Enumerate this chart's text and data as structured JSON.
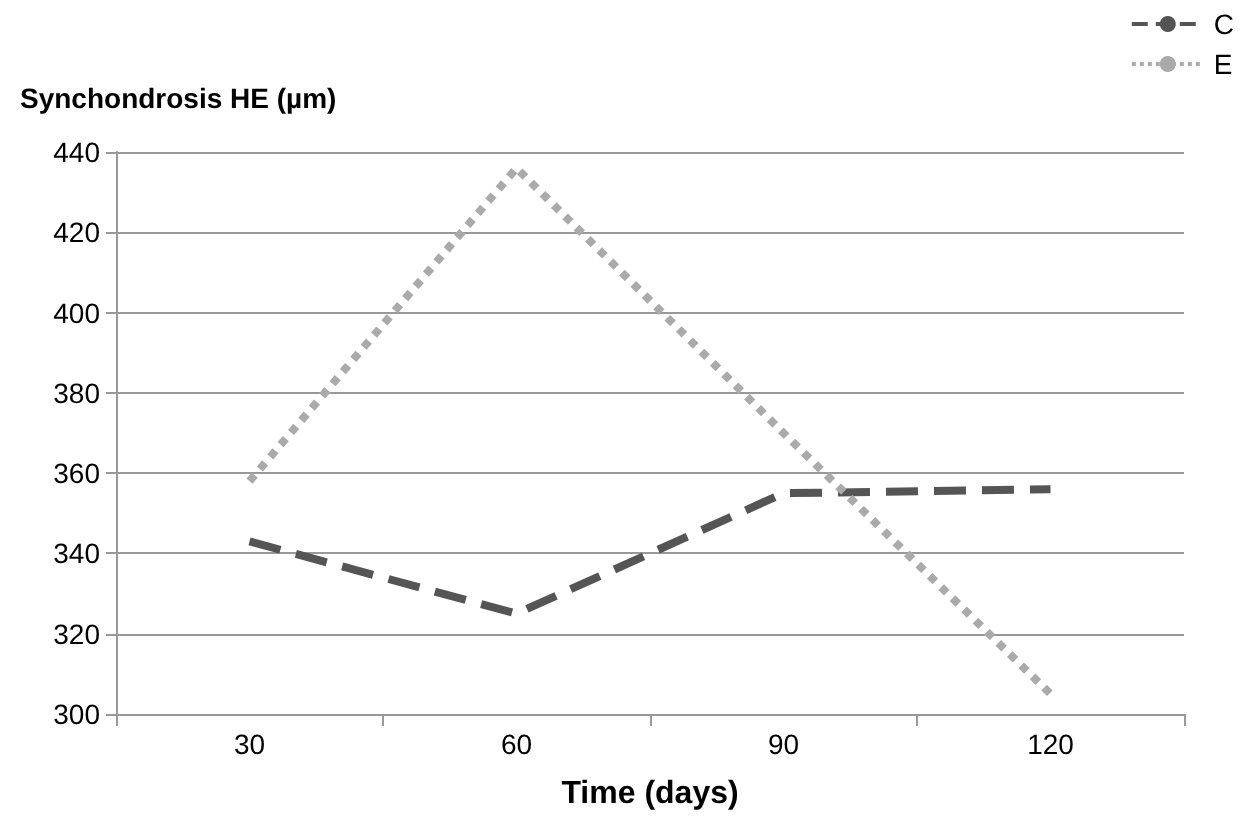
{
  "chart_data": {
    "type": "line",
    "ylabel": "Synchondrosis HE (µm)",
    "xlabel": "Time (days)",
    "categories": [
      "30",
      "60",
      "90",
      "120"
    ],
    "series": [
      {
        "name": "C",
        "color": "#555555",
        "line_style": "dashed",
        "values": [
          343,
          325,
          355,
          356
        ]
      },
      {
        "name": "E",
        "color": "#aaaaaa",
        "line_style": "dotted",
        "values": [
          358,
          436,
          370,
          305
        ]
      }
    ],
    "ylim": [
      300,
      440
    ],
    "yticks": [
      300,
      320,
      340,
      360,
      380,
      400,
      420,
      440
    ],
    "grid": "y",
    "legend": "top right",
    "marker": "none"
  }
}
